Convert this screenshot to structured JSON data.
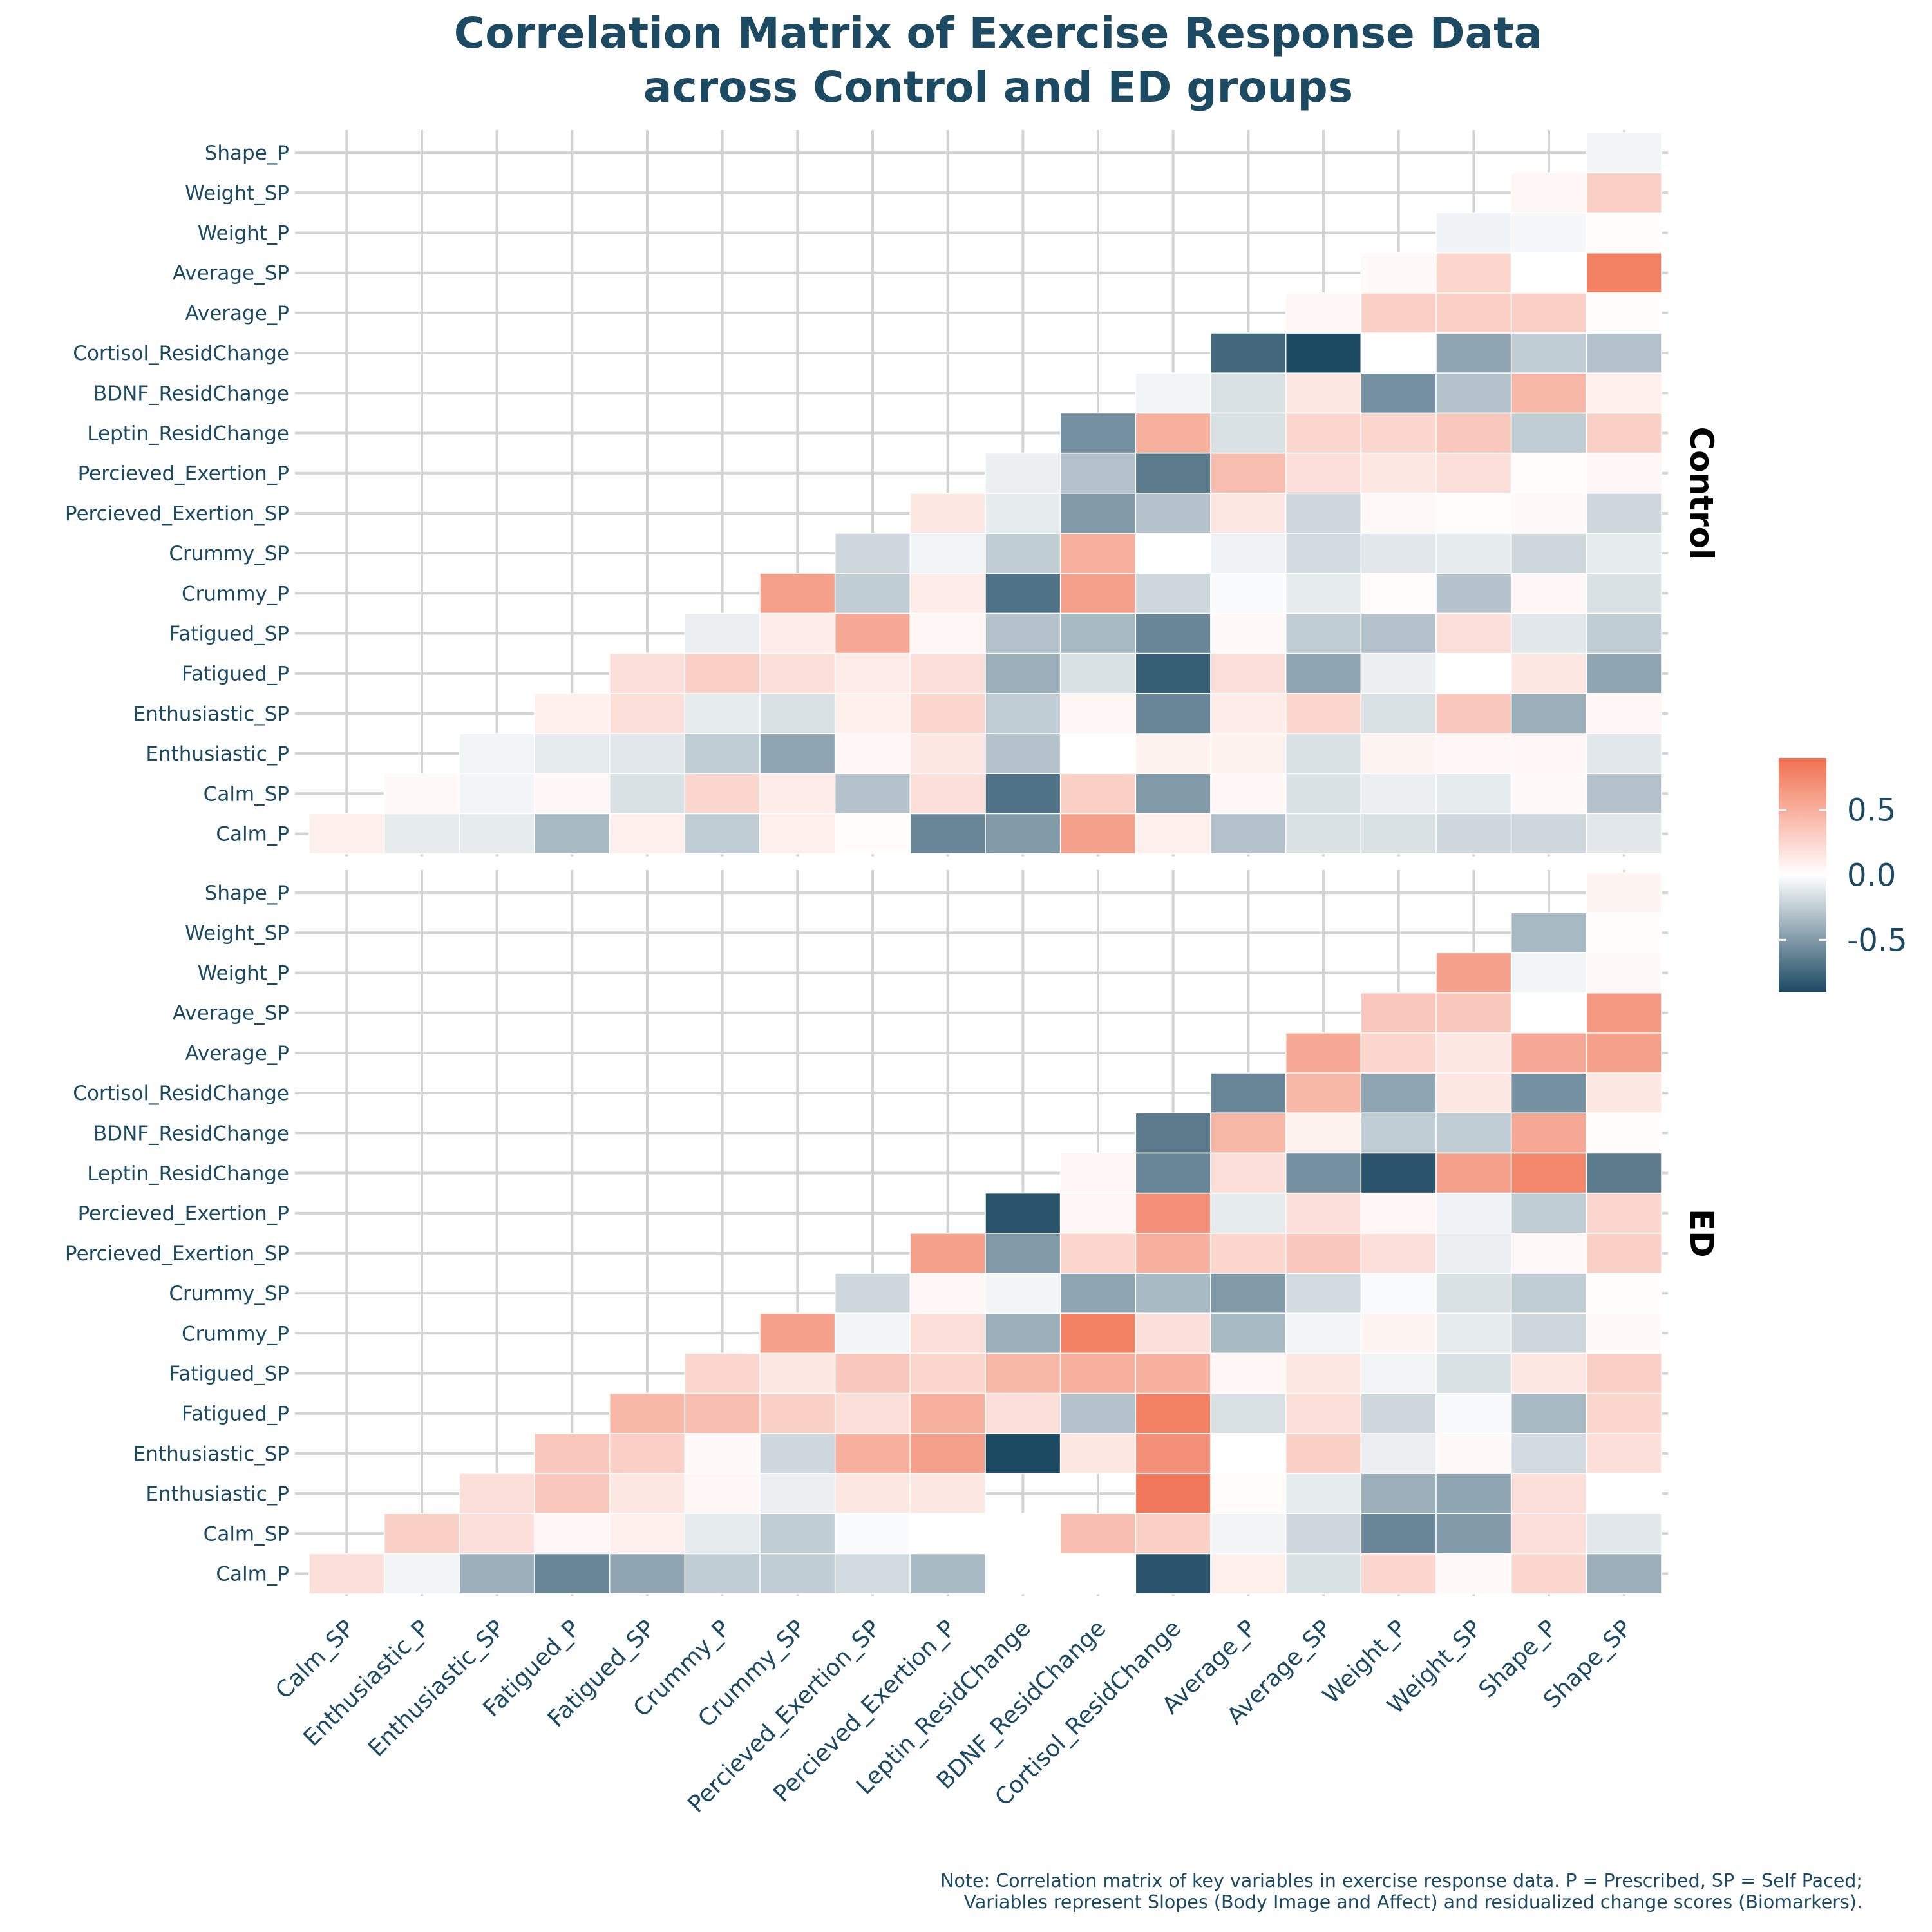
{
  "title_line1": "Correlation Matrix of Exercise Response Data",
  "title_line2": "across Control and ED groups",
  "note_line1": "Note: Correlation matrix of key variables in exercise response data. P = Prescribed, SP = Self Paced;",
  "note_line2": "Variables represent Slopes (Body Image and Affect) and residualized change scores (Biomarkers).",
  "colors": {
    "high": "#f07050",
    "mid": "#ffffff",
    "low": "#1d4a63",
    "grid": "#d3d3d3",
    "text": "#1d4a63"
  },
  "chart_data": {
    "type": "heatmap",
    "title": "Correlation Matrix of Exercise Response Data across Control and ED groups",
    "x_categories": [
      "Calm_SP",
      "Enthusiastic_P",
      "Enthusiastic_SP",
      "Fatigued_P",
      "Fatigued_SP",
      "Crummy_P",
      "Crummy_SP",
      "Percieved_Exertion_SP",
      "Percieved_Exertion_P",
      "Leptin_ResidChange",
      "BDNF_ResidChange",
      "Cortisol_ResidChange",
      "Average_P",
      "Average_SP",
      "Weight_P",
      "Weight_SP",
      "Shape_P",
      "Shape_SP"
    ],
    "y_categories": [
      "Calm_P",
      "Calm_SP",
      "Enthusiastic_P",
      "Enthusiastic_SP",
      "Fatigued_P",
      "Fatigued_SP",
      "Crummy_P",
      "Crummy_SP",
      "Percieved_Exertion_SP",
      "Percieved_Exertion_P",
      "Leptin_ResidChange",
      "BDNF_ResidChange",
      "Cortisol_ResidChange",
      "Average_P",
      "Average_SP",
      "Weight_P",
      "Weight_SP",
      "Shape_P"
    ],
    "legend": {
      "ticks": [
        0.5,
        0.0,
        -0.5
      ],
      "tick_labels": [
        "0.5",
        "0.0",
        "-0.5"
      ],
      "range": [
        -0.9,
        0.9
      ]
    },
    "panels": [
      {
        "name": "Control",
        "rows": [
          [
            0.1,
            -0.1,
            -0.1,
            -0.35,
            0.1,
            -0.25,
            0.1,
            0.02,
            -0.6,
            -0.5,
            0.6,
            0.1,
            -0.3,
            -0.15,
            -0.15,
            -0.2,
            -0.2,
            -0.12
          ],
          [
            null,
            0.03,
            -0.05,
            0.05,
            -0.15,
            0.25,
            0.12,
            -0.3,
            0.2,
            -0.7,
            0.3,
            -0.5,
            0.05,
            -0.15,
            -0.08,
            -0.1,
            0.03,
            -0.3
          ],
          [
            null,
            null,
            -0.05,
            -0.1,
            -0.12,
            -0.25,
            -0.45,
            0.05,
            0.15,
            -0.3,
            0.0,
            0.08,
            0.08,
            -0.15,
            0.06,
            0.05,
            0.05,
            -0.12
          ],
          [
            null,
            null,
            null,
            0.1,
            0.2,
            -0.1,
            -0.15,
            0.1,
            0.25,
            -0.25,
            0.05,
            -0.6,
            0.12,
            0.25,
            -0.15,
            0.35,
            -0.4,
            0.05
          ],
          [
            null,
            null,
            null,
            null,
            0.2,
            0.3,
            0.2,
            0.12,
            0.2,
            -0.4,
            -0.15,
            -0.8,
            0.2,
            -0.45,
            -0.08,
            0.0,
            0.15,
            -0.45
          ],
          [
            null,
            null,
            null,
            null,
            null,
            -0.08,
            0.12,
            0.55,
            0.05,
            -0.3,
            -0.35,
            -0.6,
            0.03,
            -0.25,
            -0.3,
            0.2,
            -0.12,
            -0.25
          ],
          [
            null,
            null,
            null,
            null,
            null,
            null,
            0.6,
            -0.25,
            0.12,
            -0.7,
            0.6,
            -0.2,
            -0.02,
            -0.1,
            0.02,
            -0.3,
            0.05,
            -0.15
          ],
          [
            null,
            null,
            null,
            null,
            null,
            null,
            null,
            -0.2,
            -0.05,
            -0.25,
            0.5,
            0.0,
            -0.06,
            -0.18,
            -0.12,
            -0.1,
            -0.2,
            -0.1
          ],
          [
            null,
            null,
            null,
            null,
            null,
            null,
            null,
            null,
            0.15,
            -0.1,
            -0.5,
            -0.3,
            0.15,
            -0.2,
            0.04,
            0.02,
            0.03,
            -0.2
          ],
          [
            null,
            null,
            null,
            null,
            null,
            null,
            null,
            null,
            null,
            -0.08,
            -0.3,
            -0.65,
            0.4,
            0.2,
            0.15,
            0.2,
            0.02,
            0.05
          ],
          [
            null,
            null,
            null,
            null,
            null,
            null,
            null,
            null,
            null,
            null,
            -0.55,
            0.5,
            -0.15,
            0.25,
            0.25,
            0.35,
            -0.25,
            0.3
          ],
          [
            null,
            null,
            null,
            null,
            null,
            null,
            null,
            null,
            null,
            null,
            null,
            -0.05,
            -0.15,
            0.15,
            -0.55,
            -0.3,
            0.45,
            0.1
          ],
          [
            null,
            null,
            null,
            null,
            null,
            null,
            null,
            null,
            null,
            null,
            null,
            null,
            -0.75,
            -0.9,
            0.0,
            -0.45,
            -0.25,
            -0.3
          ],
          [
            null,
            null,
            null,
            null,
            null,
            null,
            null,
            null,
            null,
            null,
            null,
            null,
            null,
            0.05,
            0.3,
            0.3,
            0.3,
            0.02
          ],
          [
            null,
            null,
            null,
            null,
            null,
            null,
            null,
            null,
            null,
            null,
            null,
            null,
            null,
            null,
            0.03,
            0.25,
            0.0,
            0.8
          ],
          [
            null,
            null,
            null,
            null,
            null,
            null,
            null,
            null,
            null,
            null,
            null,
            null,
            null,
            null,
            null,
            -0.06,
            -0.04,
            0.02
          ],
          [
            null,
            null,
            null,
            null,
            null,
            null,
            null,
            null,
            null,
            null,
            null,
            null,
            null,
            null,
            null,
            null,
            0.05,
            0.3
          ],
          [
            null,
            null,
            null,
            null,
            null,
            null,
            null,
            null,
            null,
            null,
            null,
            null,
            null,
            null,
            null,
            null,
            null,
            -0.05
          ]
        ]
      },
      {
        "name": "ED",
        "rows": [
          [
            0.2,
            -0.05,
            -0.4,
            -0.6,
            -0.45,
            -0.25,
            -0.25,
            -0.18,
            -0.35,
            0.0,
            0.0,
            -0.85,
            0.1,
            -0.15,
            0.25,
            0.03,
            0.25,
            -0.4
          ],
          [
            null,
            0.3,
            0.2,
            0.05,
            0.1,
            -0.1,
            -0.25,
            -0.02,
            0.0,
            0.0,
            0.4,
            0.3,
            -0.05,
            -0.2,
            -0.6,
            -0.5,
            0.2,
            -0.12
          ],
          [
            null,
            null,
            0.2,
            0.35,
            0.15,
            0.05,
            -0.08,
            0.15,
            0.15,
            null,
            null,
            0.85,
            0.02,
            -0.1,
            -0.4,
            -0.45,
            0.2,
            0.0
          ],
          [
            null,
            null,
            null,
            0.35,
            0.3,
            0.03,
            -0.2,
            0.5,
            0.6,
            -0.9,
            0.15,
            0.7,
            0.0,
            0.3,
            -0.08,
            0.03,
            -0.18,
            0.2
          ],
          [
            null,
            null,
            null,
            null,
            0.45,
            0.4,
            0.3,
            0.2,
            0.5,
            0.2,
            -0.3,
            0.8,
            -0.15,
            0.2,
            -0.2,
            -0.03,
            -0.35,
            0.25
          ],
          [
            null,
            null,
            null,
            null,
            null,
            0.25,
            0.15,
            0.35,
            0.25,
            0.45,
            0.5,
            0.5,
            0.05,
            0.15,
            -0.05,
            -0.15,
            0.15,
            0.3
          ],
          [
            null,
            null,
            null,
            null,
            null,
            null,
            0.6,
            -0.05,
            0.2,
            -0.4,
            0.8,
            0.2,
            -0.35,
            -0.05,
            0.06,
            -0.1,
            -0.2,
            0.03
          ],
          [
            null,
            null,
            null,
            null,
            null,
            null,
            null,
            -0.2,
            0.05,
            -0.05,
            -0.45,
            -0.35,
            -0.5,
            -0.18,
            -0.02,
            -0.15,
            -0.25,
            0.02
          ],
          [
            null,
            null,
            null,
            null,
            null,
            null,
            null,
            null,
            0.6,
            -0.5,
            0.25,
            0.5,
            0.25,
            0.35,
            0.2,
            -0.08,
            0.03,
            0.3
          ],
          [
            null,
            null,
            null,
            null,
            null,
            null,
            null,
            null,
            null,
            -0.85,
            0.05,
            0.7,
            -0.1,
            0.2,
            0.05,
            -0.06,
            -0.25,
            0.25
          ],
          [
            null,
            null,
            null,
            null,
            null,
            null,
            null,
            null,
            null,
            null,
            0.05,
            -0.6,
            0.2,
            -0.55,
            -0.85,
            0.6,
            0.75,
            -0.65
          ],
          [
            null,
            null,
            null,
            null,
            null,
            null,
            null,
            null,
            null,
            null,
            null,
            -0.65,
            0.45,
            0.08,
            -0.25,
            -0.25,
            0.55,
            0.02
          ],
          [
            null,
            null,
            null,
            null,
            null,
            null,
            null,
            null,
            null,
            null,
            null,
            null,
            -0.6,
            0.45,
            -0.45,
            0.15,
            -0.55,
            0.15
          ],
          [
            null,
            null,
            null,
            null,
            null,
            null,
            null,
            null,
            null,
            null,
            null,
            null,
            null,
            0.55,
            0.25,
            0.15,
            0.55,
            0.6
          ],
          [
            null,
            null,
            null,
            null,
            null,
            null,
            null,
            null,
            null,
            null,
            null,
            null,
            null,
            null,
            0.35,
            0.35,
            0.0,
            0.65
          ],
          [
            null,
            null,
            null,
            null,
            null,
            null,
            null,
            null,
            null,
            null,
            null,
            null,
            null,
            null,
            null,
            0.6,
            -0.05,
            0.03
          ],
          [
            null,
            null,
            null,
            null,
            null,
            null,
            null,
            null,
            null,
            null,
            null,
            null,
            null,
            null,
            null,
            null,
            -0.35,
            0.02
          ],
          [
            null,
            null,
            null,
            null,
            null,
            null,
            null,
            null,
            null,
            null,
            null,
            null,
            null,
            null,
            null,
            null,
            null,
            0.06
          ]
        ]
      }
    ]
  }
}
